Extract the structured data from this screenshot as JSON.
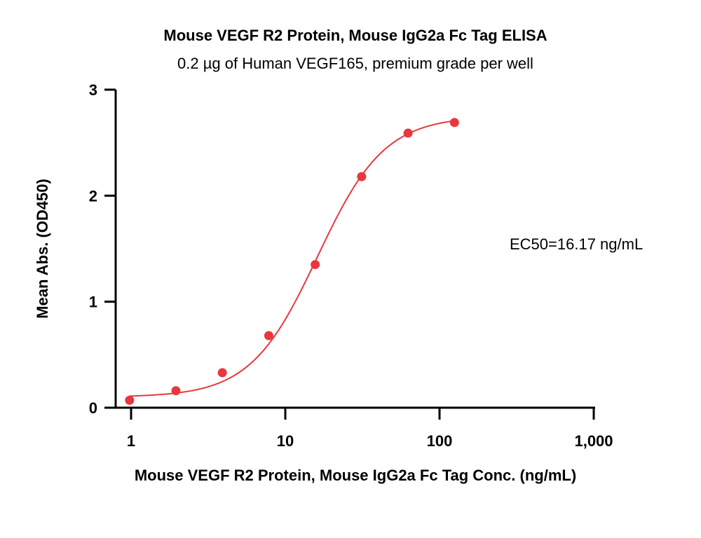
{
  "chart_data": {
    "type": "scatter",
    "title": "Mouse VEGF R2 Protein, Mouse IgG2a Fc Tag ELISA",
    "subtitle": "0.2 µg of Human VEGF165, premium grade per well",
    "xlabel": "Mouse VEGF R2 Protein, Mouse IgG2a Fc Tag Conc. (ng/mL)",
    "ylabel": "Mean Abs. (OD450)",
    "x_scale": "log",
    "xlim": [
      1,
      1000
    ],
    "ylim": [
      0,
      3
    ],
    "x_ticks": [
      1,
      10,
      100,
      1000
    ],
    "x_tick_labels": [
      "1",
      "10",
      "100",
      "1,000"
    ],
    "y_ticks": [
      0,
      1,
      2,
      3
    ],
    "y_tick_labels": [
      "0",
      "1",
      "2",
      "3"
    ],
    "grid": false,
    "legend": "none",
    "annotation": "EC50=16.17 ng/mL",
    "series": [
      {
        "color": "#e8383d",
        "x": [
          0.977,
          1.953,
          3.906,
          7.8125,
          15.625,
          31.25,
          62.5,
          125
        ],
        "y": [
          0.07,
          0.16,
          0.33,
          0.68,
          1.35,
          2.18,
          2.59,
          2.69
        ],
        "fit": {
          "model": "4PL",
          "bottom": 0.1,
          "top": 2.75,
          "ec50": 16.17,
          "hill": 2.0
        }
      }
    ]
  }
}
